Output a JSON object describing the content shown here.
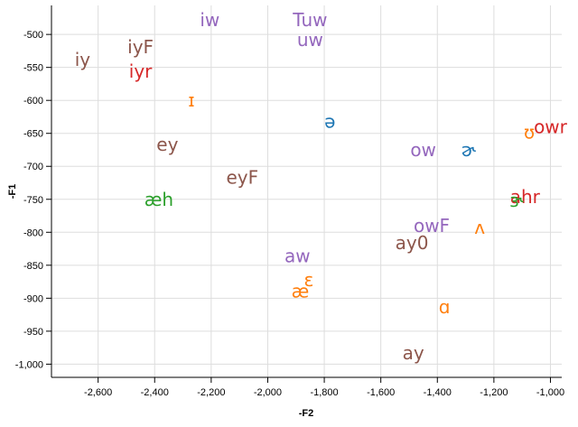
{
  "chart_data": {
    "type": "scatter",
    "xlabel": "-F2",
    "ylabel": "-F1",
    "xlim": [
      -2765,
      -960
    ],
    "ylim": [
      -1020,
      -456
    ],
    "x_ticks": [
      -2600,
      -2400,
      -2200,
      -2000,
      -1800,
      -1600,
      -1400,
      -1200,
      -1000
    ],
    "x_tick_labels": [
      "-2,600",
      "-2,400",
      "-2,200",
      "-2,000",
      "-1,800",
      "-1,600",
      "-1,400",
      "-1,200",
      "-1,000"
    ],
    "y_ticks": [
      -500,
      -550,
      -600,
      -650,
      -700,
      -750,
      -800,
      -850,
      -900,
      -950,
      -1000
    ],
    "y_tick_labels": [
      "-500",
      "-550",
      "-600",
      "-650",
      "-700",
      "-750",
      "-800",
      "-850",
      "-900",
      "-950",
      "-1,000"
    ],
    "grid": true,
    "points": [
      {
        "label": "iy",
        "x": -2655,
        "y": -538,
        "color": "#8c564b"
      },
      {
        "label": "iyF",
        "x": -2450,
        "y": -519,
        "color": "#8c564b"
      },
      {
        "label": "iyr",
        "x": -2450,
        "y": -556,
        "color": "#d62728"
      },
      {
        "label": "iw",
        "x": -2205,
        "y": -478,
        "color": "#9467bd"
      },
      {
        "label": "Tuw",
        "x": -1850,
        "y": -478,
        "color": "#9467bd"
      },
      {
        "label": "uw",
        "x": -1850,
        "y": -508,
        "color": "#9467bd"
      },
      {
        "label": "ɪ",
        "x": -2270,
        "y": -600,
        "color": "#ff7f0e"
      },
      {
        "label": "ə",
        "x": -1780,
        "y": -632,
        "color": "#1f77b4"
      },
      {
        "label": "ʊ",
        "x": -1075,
        "y": -648,
        "color": "#ff7f0e"
      },
      {
        "label": "owr",
        "x": -1000,
        "y": -640,
        "color": "#d62728"
      },
      {
        "label": "ey",
        "x": -2355,
        "y": -667,
        "color": "#8c564b"
      },
      {
        "label": "ow",
        "x": -1450,
        "y": -675,
        "color": "#9467bd"
      },
      {
        "label": "ɚ",
        "x": -1290,
        "y": -675,
        "color": "#1f77b4"
      },
      {
        "label": "eyF",
        "x": -2090,
        "y": -717,
        "color": "#8c564b"
      },
      {
        "label": "æh",
        "x": -2385,
        "y": -750,
        "color": "#2ca02c"
      },
      {
        "label": "ahr",
        "x": -1090,
        "y": -746,
        "color": "#d62728"
      },
      {
        "label": "ɝ",
        "x": -1120,
        "y": -752,
        "color": "#2ca02c"
      },
      {
        "label": "owF",
        "x": -1420,
        "y": -790,
        "color": "#9467bd"
      },
      {
        "label": "ʌ",
        "x": -1250,
        "y": -793,
        "color": "#ff7f0e"
      },
      {
        "label": "ay0",
        "x": -1490,
        "y": -816,
        "color": "#8c564b"
      },
      {
        "label": "aw",
        "x": -1895,
        "y": -836,
        "color": "#9467bd"
      },
      {
        "label": "ɛ",
        "x": -1855,
        "y": -872,
        "color": "#ff7f0e"
      },
      {
        "label": "æ",
        "x": -1885,
        "y": -889,
        "color": "#ff7f0e"
      },
      {
        "label": "ɑ",
        "x": -1375,
        "y": -913,
        "color": "#ff7f0e"
      },
      {
        "label": "ay",
        "x": -1485,
        "y": -983,
        "color": "#8c564b"
      }
    ]
  }
}
